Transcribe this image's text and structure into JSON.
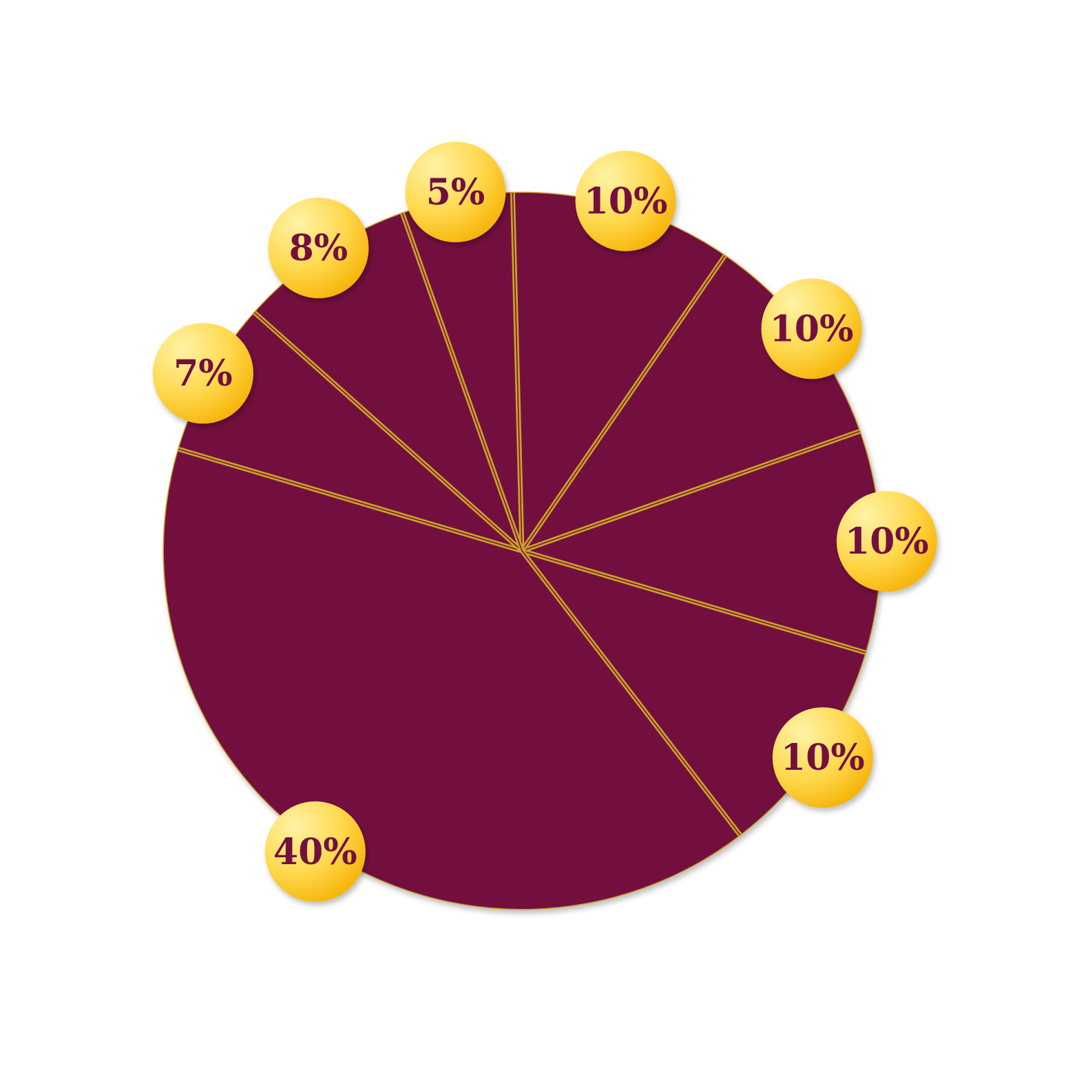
{
  "chart_data": {
    "type": "pie",
    "start_angle_deg": -1.5,
    "direction": "clockwise",
    "slices": [
      {
        "label": "10%",
        "value": 10
      },
      {
        "label": "10%",
        "value": 10
      },
      {
        "label": "10%",
        "value": 10
      },
      {
        "label": "10%",
        "value": 10
      },
      {
        "label": "40%",
        "value": 40
      },
      {
        "label": "7%",
        "value": 7
      },
      {
        "label": "8%",
        "value": 8
      },
      {
        "label": "5%",
        "value": 5
      }
    ],
    "colors": {
      "slice_fill": "#730f3e",
      "separator": "#c9a227",
      "bubble_light": "#fff3a6",
      "bubble_mid": "#ffd84d",
      "bubble_dark": "#f5b000",
      "label_text": "#730f3e"
    }
  }
}
